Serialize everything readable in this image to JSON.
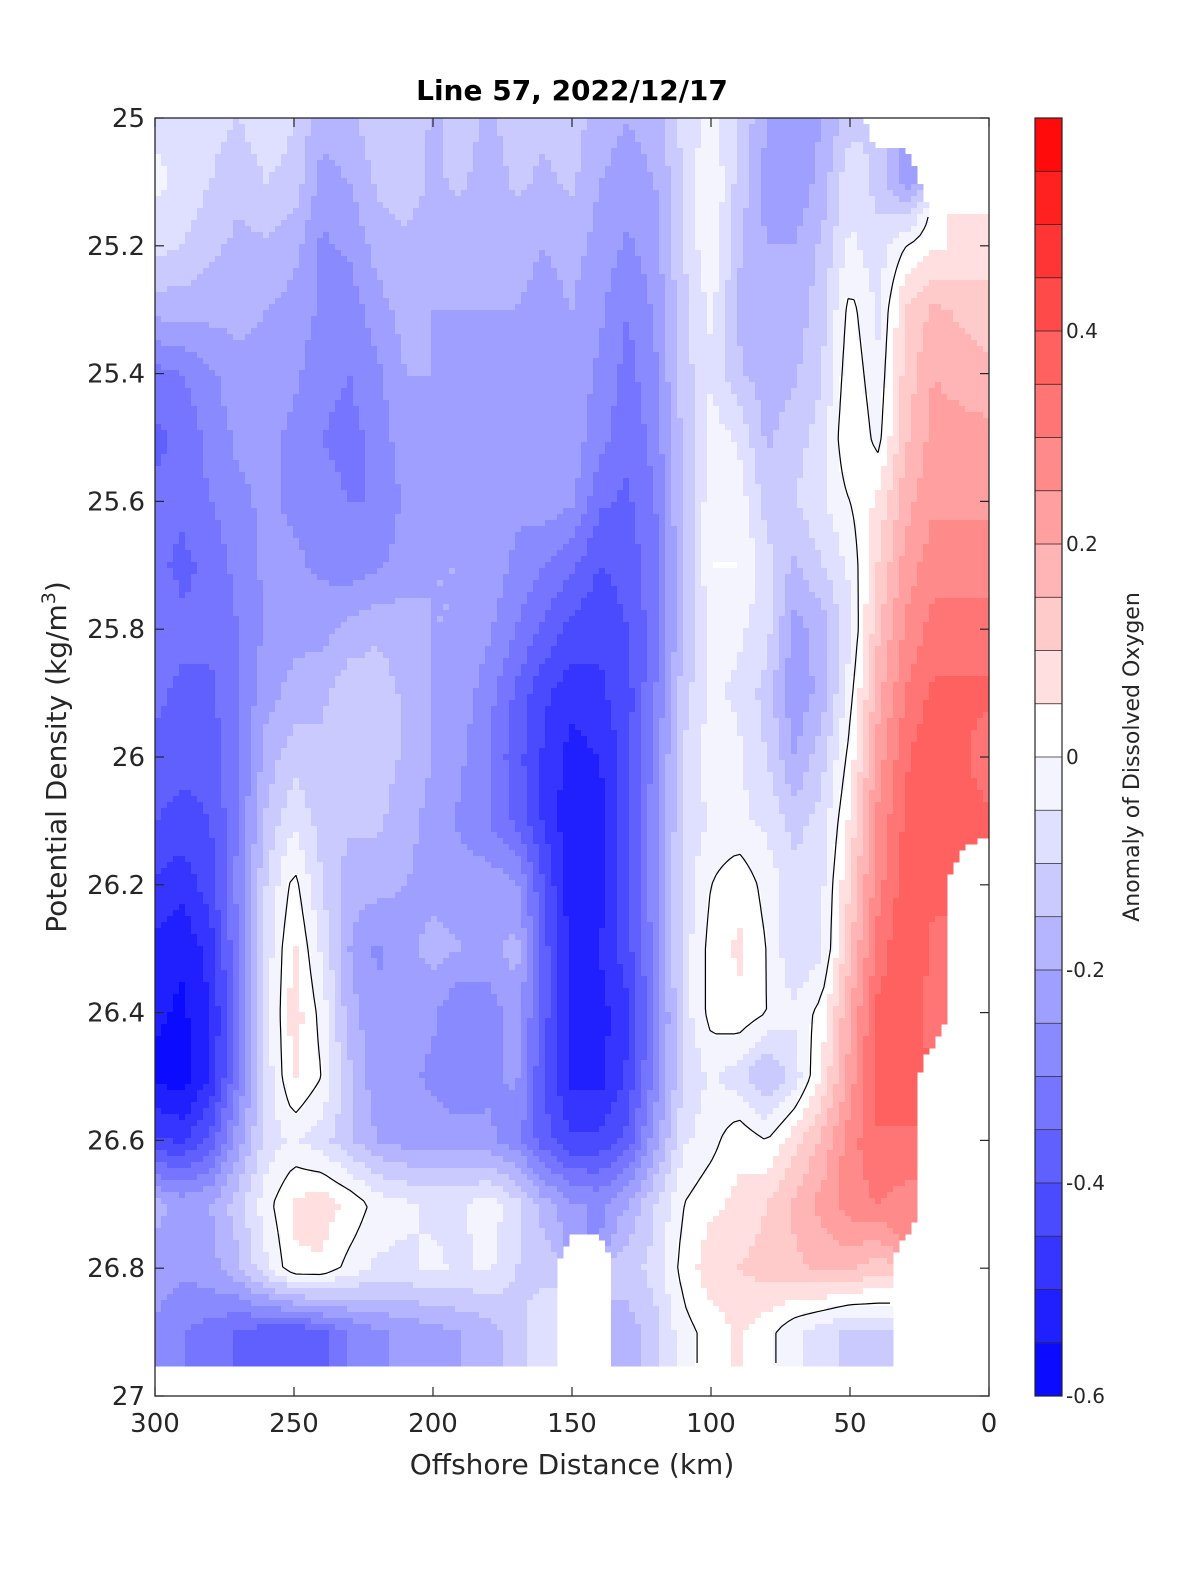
{
  "chart_data": {
    "type": "heatmap",
    "title": "Line 57, 2022/12/17",
    "xlabel": "Offshore Distance (km)",
    "ylabel_main": "Potential Density (kg/m",
    "ylabel_sup": "3",
    "ylabel_close": ")",
    "colorbar_label": "Anomaly of Dissolved Oxygen",
    "xlim": [
      300,
      0
    ],
    "ylim": [
      25,
      27
    ],
    "x_reversed": true,
    "y_reversed": true,
    "x_ticks": [
      300,
      250,
      200,
      150,
      100,
      50,
      0
    ],
    "x_tick_labels": [
      "300",
      "250",
      "200",
      "150",
      "100",
      "50",
      "0"
    ],
    "y_ticks": [
      25,
      25.2,
      25.4,
      25.6,
      25.8,
      26,
      26.2,
      26.4,
      26.6,
      26.8,
      27
    ],
    "y_tick_labels": [
      "25",
      "25.2",
      "25.4",
      "25.6",
      "25.8",
      "26",
      "26.2",
      "26.4",
      "26.6",
      "26.8",
      "27"
    ],
    "colorbar": {
      "min": -0.6,
      "max": 0.6,
      "step": 0.05,
      "ticks": [
        -0.6,
        -0.4,
        -0.2,
        0,
        0.2,
        0.4
      ],
      "tick_labels": [
        "-0.6",
        "-0.4",
        "-0.2",
        "0",
        "0.2",
        "0.4"
      ],
      "negative_color": "#0000ff",
      "positive_color": "#ff0000",
      "mid_color": "#ffffff"
    },
    "x_nodes": [
      300,
      290,
      280,
      270,
      260,
      250,
      240,
      230,
      220,
      210,
      200,
      190,
      180,
      170,
      160,
      150,
      140,
      130,
      120,
      110,
      100,
      90,
      80,
      70,
      60,
      50,
      40,
      30,
      20,
      10
    ],
    "y_nodes": [
      25.0,
      25.1,
      25.2,
      25.3,
      25.4,
      25.5,
      25.6,
      25.7,
      25.8,
      25.9,
      26.0,
      26.1,
      26.2,
      26.3,
      26.4,
      26.5,
      26.6,
      26.7,
      26.8,
      26.9
    ],
    "anomaly_grid": [
      [
        -0.06,
        -0.06,
        -0.08,
        -0.1,
        -0.06,
        -0.1,
        -0.18,
        -0.16,
        -0.12,
        -0.1,
        -0.16,
        -0.12,
        -0.16,
        -0.12,
        -0.14,
        -0.12,
        -0.18,
        -0.2,
        -0.18,
        -0.08,
        -0.03,
        -0.1,
        -0.2,
        -0.24,
        -0.2,
        -0.12,
        null,
        null,
        null,
        null
      ],
      [
        -0.04,
        -0.06,
        -0.1,
        -0.14,
        -0.1,
        -0.12,
        -0.22,
        -0.2,
        -0.14,
        -0.12,
        -0.16,
        -0.14,
        -0.18,
        -0.14,
        -0.16,
        -0.14,
        -0.2,
        -0.22,
        -0.2,
        -0.1,
        0.0,
        -0.12,
        -0.22,
        -0.24,
        -0.18,
        -0.06,
        -0.12,
        -0.22,
        null,
        null
      ],
      [
        -0.08,
        -0.1,
        -0.14,
        -0.16,
        -0.16,
        -0.18,
        -0.26,
        -0.24,
        -0.18,
        -0.16,
        -0.18,
        -0.18,
        -0.2,
        -0.18,
        -0.2,
        -0.18,
        -0.22,
        -0.26,
        -0.22,
        -0.1,
        0.0,
        -0.14,
        -0.2,
        -0.2,
        -0.14,
        -0.04,
        -0.08,
        0.0,
        0.04,
        0.06
      ],
      [
        -0.18,
        -0.18,
        -0.18,
        -0.18,
        -0.2,
        -0.22,
        -0.26,
        -0.28,
        -0.22,
        -0.18,
        -0.2,
        -0.2,
        -0.2,
        -0.2,
        -0.22,
        -0.2,
        -0.24,
        -0.3,
        -0.24,
        -0.12,
        -0.04,
        -0.16,
        -0.2,
        -0.18,
        -0.12,
        0.02,
        -0.06,
        0.1,
        0.16,
        0.14
      ],
      [
        -0.32,
        -0.3,
        -0.26,
        -0.22,
        -0.22,
        -0.24,
        -0.28,
        -0.3,
        -0.26,
        -0.2,
        -0.2,
        -0.22,
        -0.22,
        -0.22,
        -0.22,
        -0.22,
        -0.26,
        -0.32,
        -0.26,
        -0.12,
        -0.06,
        -0.14,
        -0.18,
        -0.16,
        -0.1,
        0.04,
        -0.04,
        0.12,
        0.2,
        0.18
      ],
      [
        -0.36,
        -0.34,
        -0.28,
        -0.24,
        -0.24,
        -0.26,
        -0.3,
        -0.32,
        -0.28,
        -0.22,
        -0.22,
        -0.22,
        -0.24,
        -0.24,
        -0.2,
        -0.22,
        -0.28,
        -0.34,
        -0.28,
        -0.14,
        -0.02,
        -0.06,
        -0.16,
        -0.12,
        -0.08,
        0.06,
        -0.02,
        0.14,
        0.22,
        0.22
      ],
      [
        -0.34,
        -0.34,
        -0.3,
        -0.26,
        -0.24,
        -0.26,
        -0.28,
        -0.3,
        -0.3,
        -0.24,
        -0.22,
        -0.22,
        -0.24,
        -0.24,
        -0.22,
        -0.24,
        -0.34,
        -0.36,
        -0.3,
        -0.14,
        -0.02,
        -0.02,
        -0.12,
        -0.1,
        -0.06,
        0.0,
        0.06,
        0.18,
        0.24,
        0.24
      ],
      [
        -0.34,
        -0.36,
        -0.34,
        -0.28,
        -0.24,
        -0.24,
        -0.26,
        -0.28,
        -0.26,
        -0.22,
        -0.2,
        -0.2,
        -0.22,
        -0.26,
        -0.3,
        -0.34,
        -0.4,
        -0.38,
        -0.32,
        -0.16,
        0.0,
        0.0,
        -0.08,
        -0.16,
        -0.1,
        -0.04,
        0.1,
        0.22,
        0.28,
        0.28
      ],
      [
        -0.32,
        -0.34,
        -0.34,
        -0.3,
        -0.24,
        -0.22,
        -0.22,
        -0.18,
        -0.16,
        -0.18,
        -0.2,
        -0.2,
        -0.24,
        -0.3,
        -0.36,
        -0.42,
        -0.44,
        -0.4,
        -0.32,
        -0.16,
        -0.04,
        -0.04,
        -0.08,
        -0.22,
        -0.18,
        -0.06,
        0.14,
        0.26,
        0.32,
        0.32
      ],
      [
        -0.34,
        -0.36,
        -0.36,
        -0.3,
        -0.22,
        -0.18,
        -0.16,
        -0.12,
        -0.12,
        -0.16,
        -0.2,
        -0.22,
        -0.28,
        -0.36,
        -0.44,
        -0.48,
        -0.46,
        -0.42,
        -0.3,
        -0.12,
        -0.04,
        -0.06,
        -0.12,
        -0.24,
        -0.18,
        -0.02,
        0.18,
        0.3,
        0.36,
        0.36
      ],
      [
        -0.36,
        -0.38,
        -0.38,
        -0.3,
        -0.18,
        -0.12,
        -0.14,
        -0.1,
        -0.12,
        -0.16,
        -0.2,
        -0.24,
        -0.3,
        -0.38,
        -0.46,
        -0.52,
        -0.5,
        -0.42,
        -0.28,
        -0.1,
        -0.02,
        -0.04,
        -0.1,
        -0.2,
        -0.12,
        0.02,
        0.22,
        0.34,
        0.4,
        0.36
      ],
      [
        -0.4,
        -0.42,
        -0.4,
        -0.3,
        -0.14,
        -0.06,
        -0.12,
        -0.14,
        -0.14,
        -0.18,
        -0.22,
        -0.26,
        -0.3,
        -0.36,
        -0.46,
        -0.54,
        -0.52,
        -0.42,
        -0.26,
        -0.1,
        -0.04,
        -0.04,
        -0.06,
        -0.12,
        -0.08,
        0.06,
        0.26,
        0.36,
        0.4,
        0.38
      ],
      [
        -0.46,
        -0.48,
        -0.42,
        -0.28,
        -0.1,
        0.02,
        -0.1,
        -0.18,
        -0.18,
        -0.2,
        -0.22,
        -0.22,
        -0.22,
        -0.24,
        -0.4,
        -0.54,
        -0.52,
        -0.42,
        -0.26,
        -0.08,
        0.0,
        0.04,
        -0.02,
        -0.08,
        -0.06,
        0.1,
        0.28,
        0.38,
        0.36,
        null
      ],
      [
        -0.52,
        -0.54,
        -0.48,
        -0.3,
        -0.08,
        0.06,
        -0.06,
        -0.2,
        -0.26,
        -0.22,
        -0.18,
        -0.2,
        -0.22,
        -0.18,
        -0.38,
        -0.52,
        -0.5,
        -0.42,
        -0.28,
        -0.08,
        0.02,
        0.06,
        0.0,
        -0.1,
        -0.06,
        0.14,
        0.32,
        0.4,
        0.34,
        null
      ],
      [
        -0.54,
        -0.56,
        -0.5,
        -0.32,
        -0.08,
        0.08,
        -0.02,
        -0.18,
        -0.24,
        -0.22,
        -0.24,
        -0.3,
        -0.28,
        -0.22,
        -0.38,
        -0.52,
        -0.52,
        -0.46,
        -0.3,
        -0.08,
        0.02,
        0.04,
        0.0,
        -0.04,
        0.02,
        0.2,
        0.36,
        0.4,
        0.32,
        null
      ],
      [
        -0.56,
        -0.58,
        -0.5,
        -0.3,
        -0.08,
        0.06,
        0.0,
        -0.14,
        -0.24,
        -0.24,
        -0.26,
        -0.3,
        -0.26,
        -0.24,
        -0.4,
        -0.52,
        -0.52,
        -0.44,
        -0.28,
        -0.1,
        -0.04,
        -0.08,
        -0.16,
        -0.08,
        0.06,
        0.22,
        0.38,
        0.38,
        null,
        null
      ],
      [
        -0.44,
        -0.46,
        -0.38,
        -0.22,
        -0.08,
        -0.04,
        -0.08,
        -0.14,
        -0.2,
        -0.22,
        -0.22,
        -0.22,
        -0.24,
        -0.28,
        -0.38,
        -0.44,
        -0.44,
        -0.38,
        -0.22,
        -0.06,
        -0.02,
        0.04,
        0.0,
        0.08,
        0.16,
        0.28,
        0.34,
        0.34,
        null,
        null
      ],
      [
        -0.18,
        -0.22,
        -0.2,
        -0.12,
        -0.02,
        0.06,
        0.08,
        0.04,
        -0.02,
        -0.04,
        -0.06,
        -0.06,
        -0.02,
        -0.08,
        -0.18,
        -0.24,
        -0.26,
        -0.2,
        -0.1,
        0.0,
        0.04,
        0.06,
        0.1,
        0.16,
        0.22,
        0.28,
        0.3,
        0.28,
        null,
        null
      ],
      [
        -0.22,
        -0.24,
        -0.22,
        -0.16,
        -0.06,
        0.04,
        0.04,
        -0.02,
        -0.06,
        -0.06,
        -0.04,
        -0.06,
        -0.04,
        -0.1,
        -0.12,
        null,
        null,
        -0.12,
        -0.08,
        0.02,
        0.08,
        0.1,
        0.12,
        0.14,
        0.16,
        0.16,
        0.12,
        null,
        null,
        null
      ],
      [
        -0.26,
        -0.3,
        -0.32,
        -0.36,
        -0.38,
        -0.4,
        -0.36,
        -0.3,
        -0.26,
        -0.24,
        -0.22,
        -0.2,
        -0.18,
        -0.12,
        -0.06,
        null,
        null,
        -0.18,
        -0.12,
        -0.02,
        0.02,
        0.06,
        0.02,
        -0.04,
        -0.08,
        -0.12,
        -0.1,
        null,
        null,
        null
      ]
    ]
  }
}
